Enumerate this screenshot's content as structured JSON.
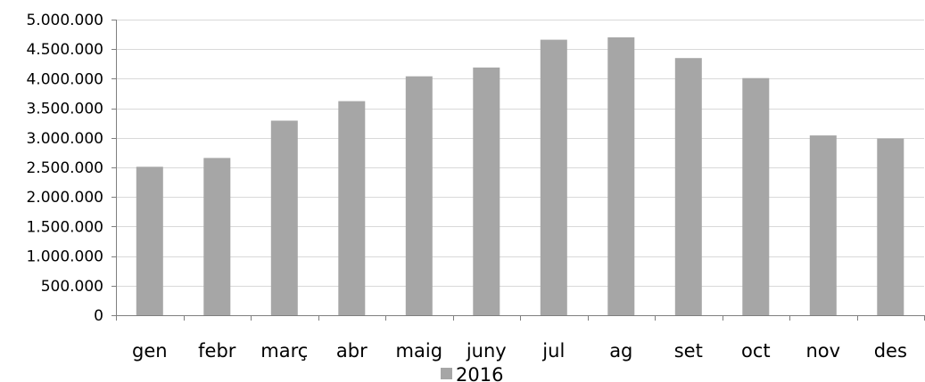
{
  "chart_data": {
    "type": "bar",
    "categories": [
      "gen",
      "febr",
      "març",
      "abr",
      "maig",
      "juny",
      "jul",
      "ag",
      "set",
      "oct",
      "nov",
      "des"
    ],
    "series": [
      {
        "name": "2016",
        "color": "#a6a6a6",
        "values": [
          2510000,
          2660000,
          3290000,
          3620000,
          4040000,
          4190000,
          4660000,
          4700000,
          4350000,
          4010000,
          3040000,
          2990000
        ]
      }
    ],
    "yticks": [
      0,
      500000,
      1000000,
      1500000,
      2000000,
      2500000,
      3000000,
      3500000,
      4000000,
      4500000,
      5000000
    ],
    "ytick_labels": [
      "0",
      "500.000",
      "1.000.000",
      "1.500.000",
      "2.000.000",
      "2.500.000",
      "3.000.000",
      "3.500.000",
      "4.000.000",
      "4.500.000",
      "5.000.000"
    ],
    "ylim": [
      0,
      5000000
    ],
    "grid": true,
    "gridline_color": "#d9d9d9",
    "axis_color": "#7f7f7f",
    "legend_position": "bottom"
  }
}
